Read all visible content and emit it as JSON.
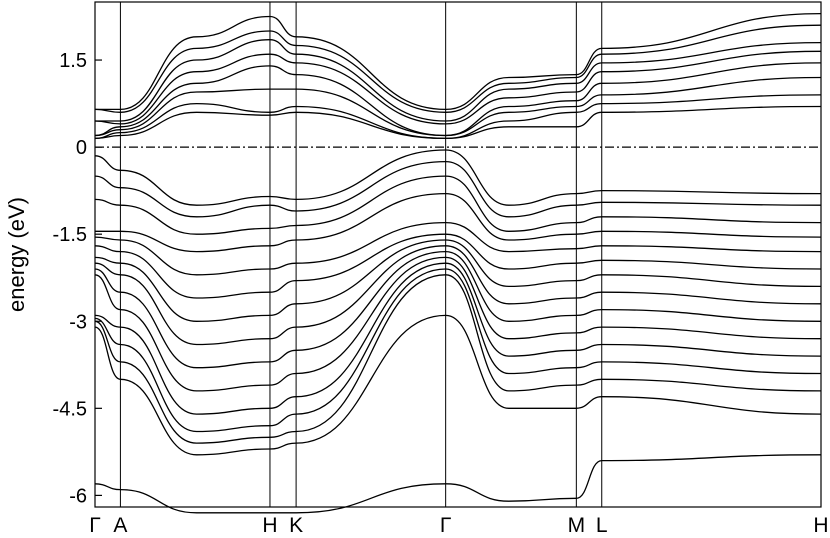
{
  "chart_data": {
    "type": "line",
    "ylabel": "energy (eV)",
    "ylim": [
      -6.2,
      2.5
    ],
    "yticks": [
      {
        "value": 1.5,
        "label": "1.5"
      },
      {
        "value": 0,
        "label": "0"
      },
      {
        "value": -1.5,
        "label": "-1.5"
      },
      {
        "value": -3,
        "label": "-3"
      },
      {
        "value": -4.5,
        "label": "-4.5"
      },
      {
        "value": -6,
        "label": "-6"
      }
    ],
    "kpath": [
      {
        "label": "Γ",
        "x": 0.0
      },
      {
        "label": "A",
        "x": 0.035
      },
      {
        "label": "H",
        "x": 0.241
      },
      {
        "label": "K",
        "x": 0.277
      },
      {
        "label": "Γ",
        "x": 0.483
      },
      {
        "label": "M",
        "x": 0.663
      },
      {
        "label": "L",
        "x": 0.698
      },
      {
        "label": "H",
        "x": 1.0
      }
    ],
    "fermi_level": 0,
    "grid": false,
    "band_count_note": "",
    "series": [
      {
        "values": [
          0.65,
          0.65,
          1.9,
          2.25,
          1.9,
          0.65,
          1.2,
          1.25,
          1.7,
          2.3
        ]
      },
      {
        "values": [
          0.65,
          0.6,
          1.7,
          2.0,
          1.75,
          0.6,
          1.1,
          1.2,
          1.6,
          2.1
        ]
      },
      {
        "values": [
          0.45,
          0.45,
          1.5,
          1.85,
          1.6,
          0.45,
          1.0,
          1.1,
          1.45,
          1.8
        ]
      },
      {
        "values": [
          0.45,
          0.4,
          1.3,
          1.6,
          1.45,
          0.4,
          0.85,
          0.95,
          1.3,
          1.65
        ]
      },
      {
        "values": [
          0.2,
          0.35,
          1.1,
          1.4,
          1.25,
          0.2,
          0.7,
          0.8,
          1.1,
          1.45
        ]
      },
      {
        "values": [
          0.2,
          0.3,
          0.95,
          1.0,
          1.0,
          0.2,
          0.6,
          0.7,
          0.9,
          1.2
        ]
      },
      {
        "values": [
          0.15,
          0.25,
          0.75,
          0.6,
          0.7,
          0.15,
          0.45,
          0.6,
          0.75,
          0.9
        ]
      },
      {
        "values": [
          0.15,
          0.2,
          0.6,
          0.55,
          0.6,
          0.15,
          0.35,
          0.35,
          0.6,
          0.7
        ]
      },
      {
        "values": [
          -0.15,
          -0.4,
          -1.0,
          -0.85,
          -0.9,
          -0.05,
          -1.0,
          -0.8,
          -0.75,
          -0.8
        ]
      },
      {
        "values": [
          -0.5,
          -0.7,
          -1.2,
          -1.0,
          -1.1,
          -0.25,
          -1.2,
          -1.0,
          -0.95,
          -1.0
        ]
      },
      {
        "values": [
          -0.9,
          -1.0,
          -1.5,
          -1.4,
          -1.35,
          -0.5,
          -1.45,
          -1.3,
          -1.2,
          -1.3
        ]
      },
      {
        "values": [
          -1.45,
          -1.45,
          -1.8,
          -1.7,
          -1.6,
          -0.8,
          -1.6,
          -1.5,
          -1.45,
          -1.55
        ]
      },
      {
        "values": [
          -1.55,
          -1.6,
          -2.2,
          -2.1,
          -2.0,
          -1.3,
          -1.8,
          -1.75,
          -1.7,
          -1.8
        ]
      },
      {
        "values": [
          -1.7,
          -1.8,
          -2.6,
          -2.5,
          -2.3,
          -1.5,
          -2.1,
          -2.0,
          -1.95,
          -2.1
        ]
      },
      {
        "values": [
          -1.9,
          -2.0,
          -3.0,
          -2.9,
          -2.7,
          -1.6,
          -2.4,
          -2.3,
          -2.2,
          -2.4
        ]
      },
      {
        "values": [
          -2.0,
          -2.2,
          -3.4,
          -3.3,
          -3.1,
          -1.7,
          -2.7,
          -2.6,
          -2.5,
          -2.7
        ]
      },
      {
        "values": [
          -2.1,
          -2.5,
          -3.8,
          -3.7,
          -3.5,
          -1.8,
          -3.0,
          -2.9,
          -2.8,
          -3.0
        ]
      },
      {
        "values": [
          -2.2,
          -2.8,
          -4.2,
          -4.1,
          -3.9,
          -1.9,
          -3.3,
          -3.2,
          -3.1,
          -3.3
        ]
      },
      {
        "values": [
          -2.9,
          -3.1,
          -4.6,
          -4.5,
          -4.3,
          -2.0,
          -3.6,
          -3.5,
          -3.4,
          -3.6
        ]
      },
      {
        "values": [
          -2.95,
          -3.4,
          -4.9,
          -4.8,
          -4.6,
          -2.1,
          -3.9,
          -3.8,
          -3.7,
          -3.9
        ]
      },
      {
        "values": [
          -3.0,
          -3.7,
          -5.1,
          -5.0,
          -4.9,
          -2.2,
          -4.2,
          -4.1,
          -4.0,
          -4.2
        ]
      },
      {
        "values": [
          -3.1,
          -4.0,
          -5.3,
          -5.2,
          -5.1,
          -2.9,
          -4.5,
          -4.5,
          -4.3,
          -4.6
        ]
      },
      {
        "values": [
          -5.8,
          -5.9,
          -6.3,
          -6.3,
          -6.3,
          -5.8,
          -6.1,
          -6.05,
          -5.4,
          -5.3
        ]
      }
    ]
  }
}
